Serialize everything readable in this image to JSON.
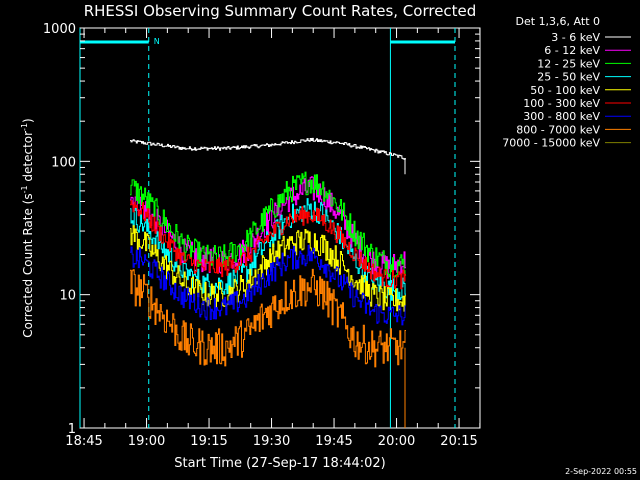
{
  "chart_data": {
    "type": "line",
    "title": "RHESSI Observing Summary Count Rates, Corrected",
    "xlabel": "Start Time (27-Sep-17 18:44:02)",
    "ylabel_main": "Corrected Count Rate (s",
    "ylabel_sup1": "-1",
    "ylabel_mid": " detector",
    "ylabel_sup2": "-1",
    "ylabel_end": ")",
    "y_scale": "log",
    "ylim": [
      1,
      1000
    ],
    "xlim_minutes": [
      0,
      96
    ],
    "x_tick_labels": [
      "18:45",
      "19:00",
      "19:15",
      "19:30",
      "19:45",
      "20:00",
      "20:15"
    ],
    "x_tick_minutes": [
      0.97,
      15.97,
      30.97,
      45.97,
      60.97,
      75.97,
      90.97
    ],
    "y_tick_labels": [
      "1",
      "10",
      "100",
      "1000"
    ],
    "y_tick_values": [
      1,
      10,
      100,
      1000
    ],
    "legend_header": "Det 1,3,6, Att 0",
    "legend_placement": "top-right outside plot",
    "night_marker": "N",
    "night_intervals_minutes": [
      [
        0,
        16.5
      ],
      [
        74.5,
        90
      ]
    ],
    "series": [
      {
        "name": "3 - 6 keV",
        "color": "#ffffff",
        "points": [
          [
            12,
            142
          ],
          [
            15,
            138
          ],
          [
            25,
            125
          ],
          [
            35,
            125
          ],
          [
            45,
            132
          ],
          [
            55,
            145
          ],
          [
            62,
            138
          ],
          [
            70,
            122
          ],
          [
            75,
            112
          ],
          [
            78,
            106
          ]
        ]
      },
      {
        "name": "6 - 12 keV",
        "color": "#ff00ff",
        "points": [
          [
            12,
            55
          ],
          [
            15,
            46
          ],
          [
            20,
            31
          ],
          [
            25,
            21
          ],
          [
            30,
            18
          ],
          [
            35,
            18
          ],
          [
            40,
            22
          ],
          [
            45,
            35
          ],
          [
            50,
            52
          ],
          [
            55,
            63
          ],
          [
            58,
            57
          ],
          [
            62,
            40
          ],
          [
            66,
            25
          ],
          [
            70,
            18
          ],
          [
            74,
            16
          ],
          [
            78,
            18
          ]
        ]
      },
      {
        "name": "12 - 25 keV",
        "color": "#00ff00",
        "points": [
          [
            12,
            65
          ],
          [
            15,
            55
          ],
          [
            20,
            36
          ],
          [
            25,
            23
          ],
          [
            30,
            19
          ],
          [
            35,
            19
          ],
          [
            40,
            25
          ],
          [
            45,
            40
          ],
          [
            50,
            60
          ],
          [
            55,
            72
          ],
          [
            58,
            65
          ],
          [
            62,
            46
          ],
          [
            66,
            29
          ],
          [
            70,
            20
          ],
          [
            74,
            17
          ],
          [
            78,
            17
          ]
        ]
      },
      {
        "name": "25 - 50 keV",
        "color": "#00ffff",
        "points": [
          [
            12,
            40
          ],
          [
            15,
            34
          ],
          [
            20,
            22
          ],
          [
            25,
            15
          ],
          [
            30,
            12
          ],
          [
            35,
            12
          ],
          [
            40,
            15
          ],
          [
            45,
            25
          ],
          [
            50,
            38
          ],
          [
            55,
            45
          ],
          [
            58,
            41
          ],
          [
            62,
            28
          ],
          [
            66,
            18
          ],
          [
            70,
            13
          ],
          [
            74,
            11
          ],
          [
            78,
            11
          ]
        ]
      },
      {
        "name": "50 - 100 keV",
        "color": "#ffff00",
        "points": [
          [
            12,
            29
          ],
          [
            15,
            25
          ],
          [
            20,
            17
          ],
          [
            25,
            12
          ],
          [
            30,
            10
          ],
          [
            35,
            10
          ],
          [
            40,
            12
          ],
          [
            45,
            18
          ],
          [
            50,
            24
          ],
          [
            55,
            26
          ],
          [
            58,
            24
          ],
          [
            62,
            18
          ],
          [
            66,
            13
          ],
          [
            70,
            10
          ],
          [
            74,
            9
          ],
          [
            78,
            9
          ]
        ]
      },
      {
        "name": "100 - 300 keV",
        "color": "#ff0000",
        "points": [
          [
            12,
            50
          ],
          [
            15,
            42
          ],
          [
            20,
            27
          ],
          [
            25,
            18
          ],
          [
            30,
            16
          ],
          [
            35,
            16
          ],
          [
            40,
            19
          ],
          [
            45,
            27
          ],
          [
            50,
            37
          ],
          [
            55,
            40
          ],
          [
            58,
            37
          ],
          [
            62,
            28
          ],
          [
            66,
            20
          ],
          [
            70,
            15
          ],
          [
            74,
            13
          ],
          [
            78,
            13
          ]
        ]
      },
      {
        "name": "300 - 800 keV",
        "color": "#0000ff",
        "points": [
          [
            12,
            19
          ],
          [
            15,
            18
          ],
          [
            20,
            13
          ],
          [
            25,
            9.5
          ],
          [
            30,
            8
          ],
          [
            35,
            8
          ],
          [
            40,
            9.5
          ],
          [
            45,
            14
          ],
          [
            50,
            18.5
          ],
          [
            55,
            20
          ],
          [
            58,
            18
          ],
          [
            62,
            13
          ],
          [
            66,
            9.5
          ],
          [
            70,
            7.5
          ],
          [
            74,
            7
          ],
          [
            78,
            7
          ]
        ]
      },
      {
        "name": "800 - 7000 keV",
        "color": "#ff8000",
        "points": [
          [
            12,
            12
          ],
          [
            15,
            10.5
          ],
          [
            20,
            7
          ],
          [
            25,
            4.5
          ],
          [
            30,
            4
          ],
          [
            35,
            4
          ],
          [
            40,
            5
          ],
          [
            45,
            7.5
          ],
          [
            50,
            10
          ],
          [
            55,
            11.5
          ],
          [
            58,
            10.5
          ],
          [
            62,
            7
          ],
          [
            66,
            4.5
          ],
          [
            70,
            4
          ],
          [
            74,
            4
          ],
          [
            78,
            4
          ]
        ]
      },
      {
        "name": "7000 - 15000 keV",
        "color": "#808000",
        "points": []
      }
    ],
    "grid": false
  },
  "footer": {
    "timestamp": "2-Sep-2022 00:55"
  }
}
